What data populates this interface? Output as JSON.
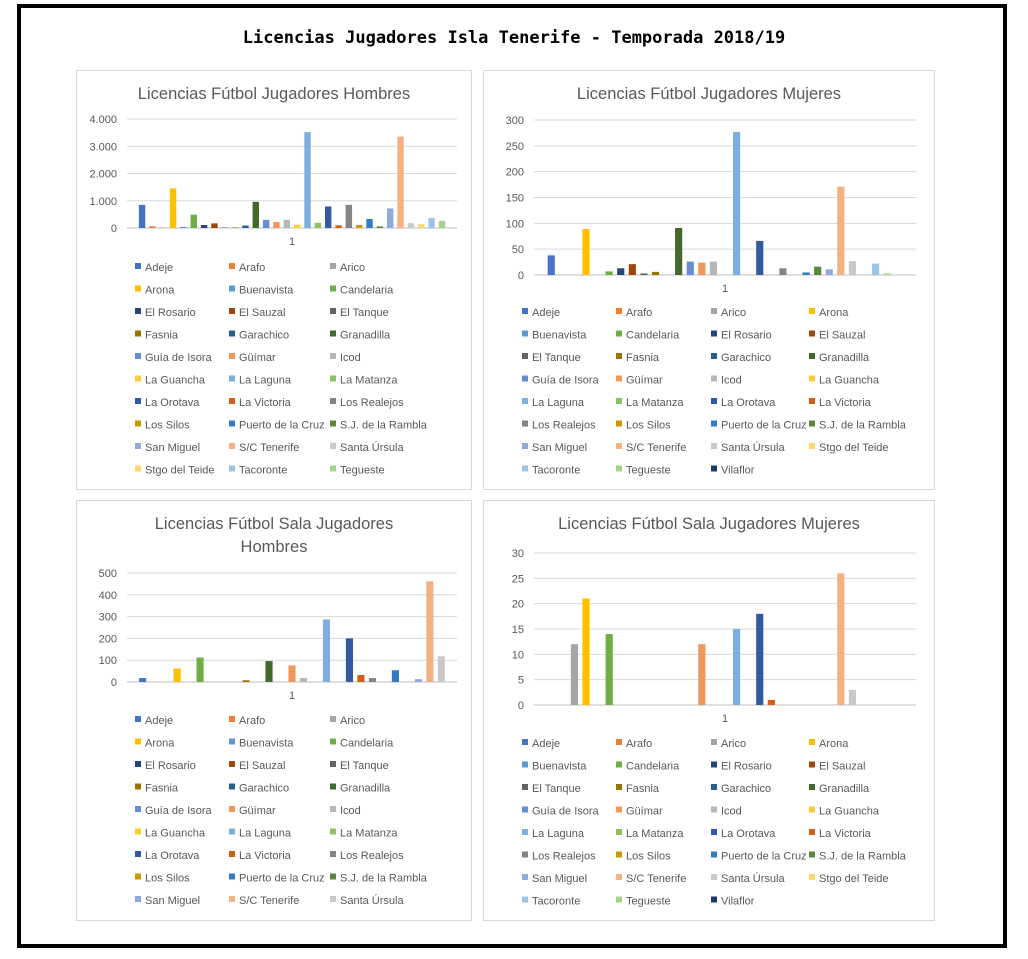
{
  "page": {
    "title": "Licencias Jugadores Isla Tenerife - Temporada 2018/19"
  },
  "chart_data": [
    {
      "type": "bar",
      "title": "Licencias Fútbol Jugadores Hombres",
      "categories": [
        "1"
      ],
      "ylim": [
        0,
        4000
      ],
      "y_ticks": [
        "0",
        "1.000",
        "2.000",
        "3.000",
        "4.000"
      ],
      "grid": true,
      "legend_placement": "bottom",
      "series": [
        {
          "name": "Adeje",
          "values": [
            850
          ],
          "color": "#4472c4"
        },
        {
          "name": "Arafo",
          "values": [
            60
          ],
          "color": "#ed7d31"
        },
        {
          "name": "Arico",
          "values": [
            20
          ],
          "color": "#a5a5a5"
        },
        {
          "name": "Arona",
          "values": [
            1450
          ],
          "color": "#ffc000"
        },
        {
          "name": "Buenavista",
          "values": [
            40
          ],
          "color": "#5b9bd5"
        },
        {
          "name": "Candelaria",
          "values": [
            490
          ],
          "color": "#70ad47"
        },
        {
          "name": "El Rosario",
          "values": [
            110
          ],
          "color": "#264478"
        },
        {
          "name": "El Sauzal",
          "values": [
            170
          ],
          "color": "#9e480e"
        },
        {
          "name": "El Tanque",
          "values": [
            20
          ],
          "color": "#636363"
        },
        {
          "name": "Fasnia",
          "values": [
            20
          ],
          "color": "#997300"
        },
        {
          "name": "Garachico",
          "values": [
            90
          ],
          "color": "#255e91"
        },
        {
          "name": "Granadilla",
          "values": [
            960
          ],
          "color": "#43682b"
        },
        {
          "name": "Guía de Isora",
          "values": [
            300
          ],
          "color": "#698ed0"
        },
        {
          "name": "Güímar",
          "values": [
            220
          ],
          "color": "#f1975a"
        },
        {
          "name": "Icod",
          "values": [
            300
          ],
          "color": "#b7b7b7"
        },
        {
          "name": "La Guancha",
          "values": [
            120
          ],
          "color": "#ffcd33"
        },
        {
          "name": "La Laguna",
          "values": [
            3520
          ],
          "color": "#7cafdd"
        },
        {
          "name": "La Matanza",
          "values": [
            190
          ],
          "color": "#8cc168"
        },
        {
          "name": "La Orotava",
          "values": [
            790
          ],
          "color": "#335aa1"
        },
        {
          "name": "La Victoria",
          "values": [
            100
          ],
          "color": "#d26012"
        },
        {
          "name": "Los Realejos",
          "values": [
            850
          ],
          "color": "#848484"
        },
        {
          "name": "Los Silos",
          "values": [
            110
          ],
          "color": "#cc9a00"
        },
        {
          "name": "Puerto de la Cruz",
          "values": [
            330
          ],
          "color": "#327dc2"
        },
        {
          "name": "S.J. de la Rambla",
          "values": [
            60
          ],
          "color": "#5a8a39"
        },
        {
          "name": "San Miguel",
          "values": [
            720
          ],
          "color": "#8faadc"
        },
        {
          "name": "S/C Tenerife",
          "values": [
            3350
          ],
          "color": "#f4b183"
        },
        {
          "name": "Santa Úrsula",
          "values": [
            180
          ],
          "color": "#c9c9c9"
        },
        {
          "name": "Stgo del Teide",
          "values": [
            140
          ],
          "color": "#ffd966"
        },
        {
          "name": "Tacoronte",
          "values": [
            370
          ],
          "color": "#9dc3e6"
        },
        {
          "name": "Tegueste",
          "values": [
            260
          ],
          "color": "#a9d18e"
        }
      ]
    },
    {
      "type": "bar",
      "title": "Licencias Fútbol Jugadores Mujeres",
      "categories": [
        "1"
      ],
      "ylim": [
        0,
        300
      ],
      "y_ticks": [
        "0",
        "50",
        "100",
        "150",
        "200",
        "250",
        "300"
      ],
      "grid": true,
      "legend_placement": "bottom",
      "series": [
        {
          "name": "Adeje",
          "values": [
            38
          ],
          "color": "#4472c4"
        },
        {
          "name": "Arafo",
          "values": [
            0
          ],
          "color": "#ed7d31"
        },
        {
          "name": "Arico",
          "values": [
            0
          ],
          "color": "#a5a5a5"
        },
        {
          "name": "Arona",
          "values": [
            89
          ],
          "color": "#ffc000"
        },
        {
          "name": "Buenavista",
          "values": [
            0
          ],
          "color": "#5b9bd5"
        },
        {
          "name": "Candelaria",
          "values": [
            7
          ],
          "color": "#70ad47"
        },
        {
          "name": "El Rosario",
          "values": [
            13
          ],
          "color": "#264478"
        },
        {
          "name": "El Sauzal",
          "values": [
            21
          ],
          "color": "#9e480e"
        },
        {
          "name": "El Tanque",
          "values": [
            3
          ],
          "color": "#636363"
        },
        {
          "name": "Fasnia",
          "values": [
            6
          ],
          "color": "#997300"
        },
        {
          "name": "Garachico",
          "values": [
            0
          ],
          "color": "#255e91"
        },
        {
          "name": "Granadilla",
          "values": [
            91
          ],
          "color": "#43682b"
        },
        {
          "name": "Guía de Isora",
          "values": [
            26
          ],
          "color": "#698ed0"
        },
        {
          "name": "Güímar",
          "values": [
            24
          ],
          "color": "#f1975a"
        },
        {
          "name": "Icod",
          "values": [
            26
          ],
          "color": "#b7b7b7"
        },
        {
          "name": "La Guancha",
          "values": [
            0
          ],
          "color": "#ffcd33"
        },
        {
          "name": "La Laguna",
          "values": [
            277
          ],
          "color": "#7cafdd"
        },
        {
          "name": "La Matanza",
          "values": [
            0
          ],
          "color": "#8cc168"
        },
        {
          "name": "La Orotava",
          "values": [
            66
          ],
          "color": "#335aa1"
        },
        {
          "name": "La Victoria",
          "values": [
            0
          ],
          "color": "#d26012"
        },
        {
          "name": "Los Realejos",
          "values": [
            13
          ],
          "color": "#848484"
        },
        {
          "name": "Los Silos",
          "values": [
            0
          ],
          "color": "#cc9a00"
        },
        {
          "name": "Puerto de la Cruz",
          "values": [
            5
          ],
          "color": "#327dc2"
        },
        {
          "name": "S.J. de la Rambla",
          "values": [
            16
          ],
          "color": "#5a8a39"
        },
        {
          "name": "San Miguel",
          "values": [
            11
          ],
          "color": "#8faadc"
        },
        {
          "name": "S/C Tenerife",
          "values": [
            171
          ],
          "color": "#f4b183"
        },
        {
          "name": "Santa Úrsula",
          "values": [
            27
          ],
          "color": "#c9c9c9"
        },
        {
          "name": "Stgo del Teide",
          "values": [
            0
          ],
          "color": "#ffd966"
        },
        {
          "name": "Tacoronte",
          "values": [
            22
          ],
          "color": "#9dc3e6"
        },
        {
          "name": "Tegueste",
          "values": [
            3
          ],
          "color": "#a9d18e"
        },
        {
          "name": "Vilaflor",
          "values": [
            0
          ],
          "color": "#203864"
        }
      ]
    },
    {
      "type": "bar",
      "title": "Licencias Fútbol Sala Jugadores Hombres",
      "categories": [
        "1"
      ],
      "ylim": [
        0,
        500
      ],
      "y_ticks": [
        "0",
        "100",
        "200",
        "300",
        "400",
        "500"
      ],
      "grid": true,
      "legend_placement": "bottom",
      "series": [
        {
          "name": "Adeje",
          "values": [
            18
          ],
          "color": "#4472c4"
        },
        {
          "name": "Arafo",
          "values": [
            0
          ],
          "color": "#ed7d31"
        },
        {
          "name": "Arico",
          "values": [
            0
          ],
          "color": "#a5a5a5"
        },
        {
          "name": "Arona",
          "values": [
            62
          ],
          "color": "#ffc000"
        },
        {
          "name": "Buenavista",
          "values": [
            0
          ],
          "color": "#5b9bd5"
        },
        {
          "name": "Candelaria",
          "values": [
            112
          ],
          "color": "#70ad47"
        },
        {
          "name": "El Rosario",
          "values": [
            0
          ],
          "color": "#264478"
        },
        {
          "name": "El Sauzal",
          "values": [
            0
          ],
          "color": "#9e480e"
        },
        {
          "name": "El Tanque",
          "values": [
            0
          ],
          "color": "#636363"
        },
        {
          "name": "Fasnia",
          "values": [
            8
          ],
          "color": "#997300"
        },
        {
          "name": "Garachico",
          "values": [
            0
          ],
          "color": "#255e91"
        },
        {
          "name": "Granadilla",
          "values": [
            96
          ],
          "color": "#43682b"
        },
        {
          "name": "Guía de Isora",
          "values": [
            0
          ],
          "color": "#698ed0"
        },
        {
          "name": "Güímar",
          "values": [
            76
          ],
          "color": "#f1975a"
        },
        {
          "name": "Icod",
          "values": [
            18
          ],
          "color": "#b7b7b7"
        },
        {
          "name": "La Guancha",
          "values": [
            0
          ],
          "color": "#ffcd33"
        },
        {
          "name": "La Laguna",
          "values": [
            287
          ],
          "color": "#7cafdd"
        },
        {
          "name": "La Matanza",
          "values": [
            0
          ],
          "color": "#8cc168"
        },
        {
          "name": "La Orotava",
          "values": [
            200
          ],
          "color": "#335aa1"
        },
        {
          "name": "La Victoria",
          "values": [
            32
          ],
          "color": "#d26012"
        },
        {
          "name": "Los Realejos",
          "values": [
            18
          ],
          "color": "#848484"
        },
        {
          "name": "Los Silos",
          "values": [
            0
          ],
          "color": "#cc9a00"
        },
        {
          "name": "Puerto de la Cruz",
          "values": [
            54
          ],
          "color": "#327dc2"
        },
        {
          "name": "S.J. de la Rambla",
          "values": [
            0
          ],
          "color": "#5a8a39"
        },
        {
          "name": "San Miguel",
          "values": [
            13
          ],
          "color": "#8faadc"
        },
        {
          "name": "S/C Tenerife",
          "values": [
            462
          ],
          "color": "#f4b183"
        },
        {
          "name": "Santa Úrsula",
          "values": [
            118
          ],
          "color": "#c9c9c9"
        }
      ]
    },
    {
      "type": "bar",
      "title": "Licencias Fútbol Sala Jugadores Mujeres",
      "categories": [
        "1"
      ],
      "ylim": [
        0,
        30
      ],
      "y_ticks": [
        "0",
        "5",
        "10",
        "15",
        "20",
        "25",
        "30"
      ],
      "grid": true,
      "legend_placement": "bottom",
      "series": [
        {
          "name": "Adeje",
          "values": [
            0
          ],
          "color": "#4472c4"
        },
        {
          "name": "Arafo",
          "values": [
            0
          ],
          "color": "#ed7d31"
        },
        {
          "name": "Arico",
          "values": [
            12
          ],
          "color": "#a5a5a5"
        },
        {
          "name": "Arona",
          "values": [
            21
          ],
          "color": "#ffc000"
        },
        {
          "name": "Buenavista",
          "values": [
            0
          ],
          "color": "#5b9bd5"
        },
        {
          "name": "Candelaria",
          "values": [
            14
          ],
          "color": "#70ad47"
        },
        {
          "name": "El Rosario",
          "values": [
            0
          ],
          "color": "#264478"
        },
        {
          "name": "El Sauzal",
          "values": [
            0
          ],
          "color": "#9e480e"
        },
        {
          "name": "El Tanque",
          "values": [
            0
          ],
          "color": "#636363"
        },
        {
          "name": "Fasnia",
          "values": [
            0
          ],
          "color": "#997300"
        },
        {
          "name": "Garachico",
          "values": [
            0
          ],
          "color": "#255e91"
        },
        {
          "name": "Granadilla",
          "values": [
            0
          ],
          "color": "#43682b"
        },
        {
          "name": "Guía de Isora",
          "values": [
            0
          ],
          "color": "#698ed0"
        },
        {
          "name": "Güímar",
          "values": [
            12
          ],
          "color": "#f1975a"
        },
        {
          "name": "Icod",
          "values": [
            0
          ],
          "color": "#b7b7b7"
        },
        {
          "name": "La Guancha",
          "values": [
            0
          ],
          "color": "#ffcd33"
        },
        {
          "name": "La Laguna",
          "values": [
            15
          ],
          "color": "#7cafdd"
        },
        {
          "name": "La Matanza",
          "values": [
            0
          ],
          "color": "#8cc168"
        },
        {
          "name": "La Orotava",
          "values": [
            18
          ],
          "color": "#335aa1"
        },
        {
          "name": "La Victoria",
          "values": [
            1
          ],
          "color": "#d26012"
        },
        {
          "name": "Los Realejos",
          "values": [
            0
          ],
          "color": "#848484"
        },
        {
          "name": "Los Silos",
          "values": [
            0
          ],
          "color": "#cc9a00"
        },
        {
          "name": "Puerto de la Cruz",
          "values": [
            0
          ],
          "color": "#327dc2"
        },
        {
          "name": "S.J. de la Rambla",
          "values": [
            0
          ],
          "color": "#5a8a39"
        },
        {
          "name": "San Miguel",
          "values": [
            0
          ],
          "color": "#8faadc"
        },
        {
          "name": "S/C Tenerife",
          "values": [
            26
          ],
          "color": "#f4b183"
        },
        {
          "name": "Santa Úrsula",
          "values": [
            3
          ],
          "color": "#c9c9c9"
        },
        {
          "name": "Stgo del Teide",
          "values": [
            0
          ],
          "color": "#ffd966"
        },
        {
          "name": "Tacoronte",
          "values": [
            0
          ],
          "color": "#9dc3e6"
        },
        {
          "name": "Tegueste",
          "values": [
            0
          ],
          "color": "#a9d18e"
        },
        {
          "name": "Vilaflor",
          "values": [
            0
          ],
          "color": "#203864"
        }
      ]
    }
  ]
}
